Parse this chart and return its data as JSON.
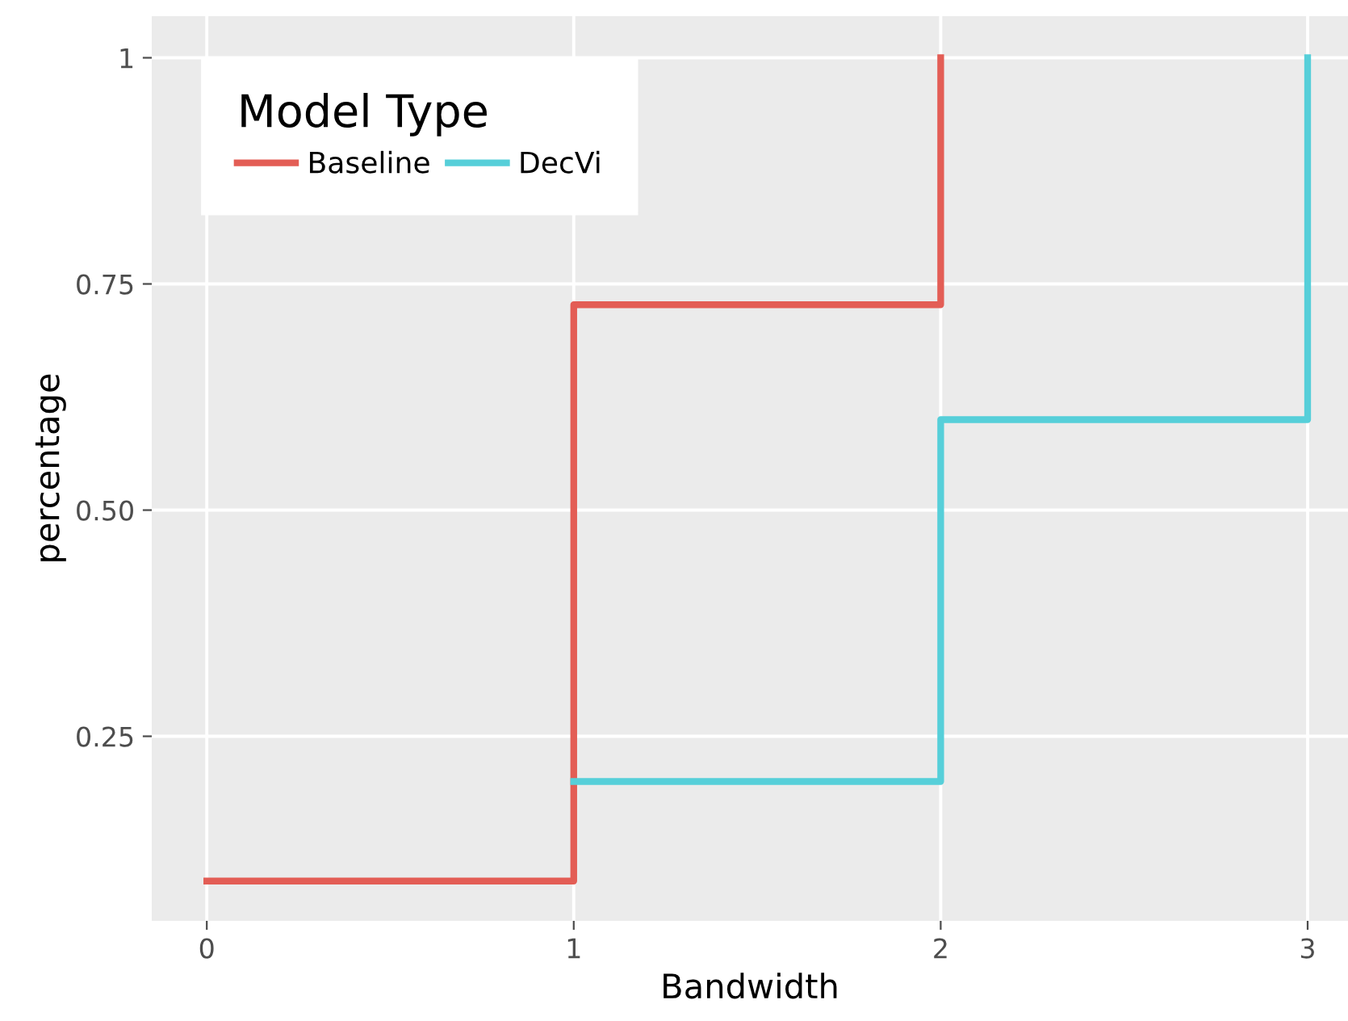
{
  "chart_data": {
    "type": "step",
    "xlabel": "Bandwidth",
    "ylabel": "percentage",
    "legend_title": "Model Type",
    "series": [
      {
        "name": "Baseline",
        "color": "#e35d55",
        "x": [
          0,
          1,
          2
        ],
        "values": [
          0.09,
          0.727,
          1
        ]
      },
      {
        "name": "DecVi",
        "color": "#56cfd9",
        "x": [
          1,
          2,
          3
        ],
        "values": [
          0.2,
          0.6,
          1
        ]
      }
    ],
    "xlim": [
      -0.15,
      3.11
    ],
    "xticks": [
      0,
      1,
      2,
      3
    ],
    "ylim": [
      0.046,
      1.046
    ],
    "yticks": [
      {
        "value": 0.25,
        "label": "0.25"
      },
      {
        "value": 0.5,
        "label": "0.50"
      },
      {
        "value": 0.75,
        "label": "0.75"
      },
      1
    ],
    "grid": true,
    "legend": "top left",
    "line_style": "solid",
    "marker": "none"
  }
}
